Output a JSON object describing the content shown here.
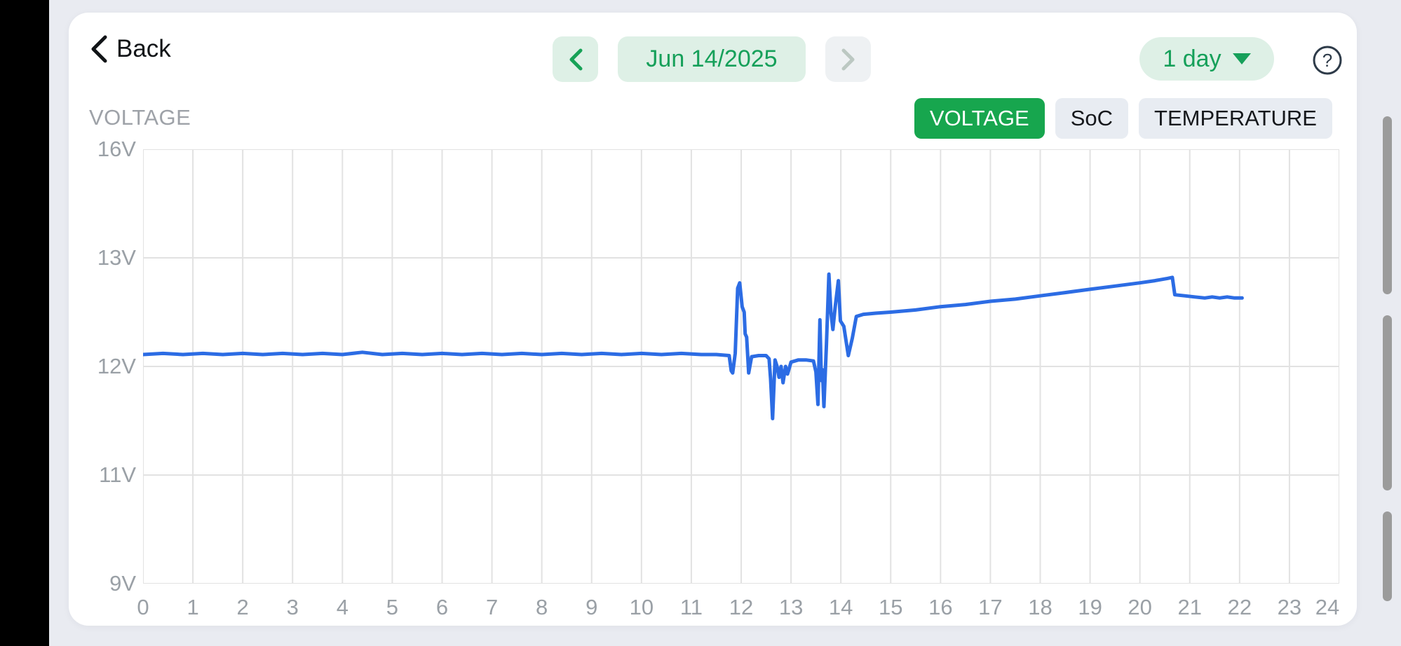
{
  "header": {
    "back_label": "Back",
    "date": "Jun 14/2025",
    "range_label": "1 day",
    "help_glyph": "?"
  },
  "tabs": [
    {
      "label": "VOLTAGE",
      "active": true
    },
    {
      "label": "SoC",
      "active": false
    },
    {
      "label": "TEMPERATURE",
      "active": false
    }
  ],
  "colors": {
    "accent_green": "#16a05a",
    "accent_green_bg": "#def0e6",
    "active_tab_green": "#17a64e",
    "inactive_tab_bg": "#e8ecf2",
    "line_blue": "#2c6ce4",
    "gridline": "#e2e2e2",
    "axis_text": "#9aa0a6",
    "background": "#e9ebf1",
    "card": "#ffffff",
    "disabled_chevron": "#bcc8c2"
  },
  "chart_data": {
    "type": "line",
    "title": "VOLTAGE",
    "x_ticks": [
      0,
      1,
      2,
      3,
      4,
      5,
      6,
      7,
      8,
      9,
      10,
      11,
      12,
      13,
      14,
      15,
      16,
      17,
      18,
      19,
      20,
      21,
      22,
      23,
      24
    ],
    "x_range": [
      0,
      24
    ],
    "y_ticks": [
      {
        "label": "16V",
        "value": 16
      },
      {
        "label": "13V",
        "value": 13
      },
      {
        "label": "12V",
        "value": 12
      },
      {
        "label": "11V",
        "value": 11
      },
      {
        "label": "9V",
        "value": 9
      }
    ],
    "y_axis_note": "nonlinear axis: gridlines evenly spaced at values 16,13,12,11,9",
    "grid": true,
    "series": [
      {
        "name": "voltage",
        "color": "#2c6ce4",
        "points": [
          [
            0,
            12.11
          ],
          [
            0.4,
            12.12
          ],
          [
            0.8,
            12.11
          ],
          [
            1.2,
            12.12
          ],
          [
            1.6,
            12.11
          ],
          [
            2,
            12.12
          ],
          [
            2.4,
            12.11
          ],
          [
            2.8,
            12.12
          ],
          [
            3.2,
            12.11
          ],
          [
            3.6,
            12.12
          ],
          [
            4,
            12.11
          ],
          [
            4.4,
            12.13
          ],
          [
            4.8,
            12.11
          ],
          [
            5.2,
            12.12
          ],
          [
            5.6,
            12.11
          ],
          [
            6,
            12.12
          ],
          [
            6.4,
            12.11
          ],
          [
            6.8,
            12.12
          ],
          [
            7.2,
            12.11
          ],
          [
            7.6,
            12.12
          ],
          [
            8,
            12.11
          ],
          [
            8.4,
            12.12
          ],
          [
            8.8,
            12.11
          ],
          [
            9.2,
            12.12
          ],
          [
            9.6,
            12.11
          ],
          [
            10,
            12.12
          ],
          [
            10.4,
            12.11
          ],
          [
            10.8,
            12.12
          ],
          [
            11.2,
            12.11
          ],
          [
            11.5,
            12.11
          ],
          [
            11.76,
            12.1
          ],
          [
            11.8,
            11.96
          ],
          [
            11.83,
            11.94
          ],
          [
            11.88,
            12.12
          ],
          [
            11.93,
            12.72
          ],
          [
            11.97,
            12.77
          ],
          [
            12.02,
            12.55
          ],
          [
            12.06,
            12.5
          ],
          [
            12.08,
            12.3
          ],
          [
            12.11,
            12.27
          ],
          [
            12.15,
            11.94
          ],
          [
            12.21,
            12.09
          ],
          [
            12.35,
            12.1
          ],
          [
            12.5,
            12.1
          ],
          [
            12.56,
            12.07
          ],
          [
            12.59,
            11.89
          ],
          [
            12.63,
            11.52
          ],
          [
            12.68,
            12.06
          ],
          [
            12.72,
            12.0
          ],
          [
            12.76,
            11.9
          ],
          [
            12.8,
            12.0
          ],
          [
            12.84,
            11.85
          ],
          [
            12.89,
            12.0
          ],
          [
            12.93,
            11.93
          ],
          [
            13.0,
            12.04
          ],
          [
            13.15,
            12.06
          ],
          [
            13.3,
            12.06
          ],
          [
            13.45,
            12.05
          ],
          [
            13.5,
            11.95
          ],
          [
            13.54,
            11.65
          ],
          [
            13.58,
            12.43
          ],
          [
            13.61,
            11.87
          ],
          [
            13.63,
            11.97
          ],
          [
            13.66,
            11.63
          ],
          [
            13.71,
            12.2
          ],
          [
            13.76,
            12.85
          ],
          [
            13.8,
            12.5
          ],
          [
            13.84,
            12.34
          ],
          [
            13.89,
            12.56
          ],
          [
            13.95,
            12.79
          ],
          [
            13.99,
            12.42
          ],
          [
            14.06,
            12.37
          ],
          [
            14.15,
            12.1
          ],
          [
            14.23,
            12.26
          ],
          [
            14.31,
            12.46
          ],
          [
            14.45,
            12.48
          ],
          [
            14.7,
            12.49
          ],
          [
            15,
            12.5
          ],
          [
            15.5,
            12.52
          ],
          [
            16,
            12.55
          ],
          [
            16.5,
            12.57
          ],
          [
            17,
            12.6
          ],
          [
            17.5,
            12.62
          ],
          [
            18,
            12.65
          ],
          [
            18.5,
            12.68
          ],
          [
            19,
            12.71
          ],
          [
            19.5,
            12.74
          ],
          [
            20,
            12.77
          ],
          [
            20.3,
            12.79
          ],
          [
            20.55,
            12.81
          ],
          [
            20.65,
            12.82
          ],
          [
            20.7,
            12.66
          ],
          [
            20.9,
            12.65
          ],
          [
            21.1,
            12.64
          ],
          [
            21.3,
            12.63
          ],
          [
            21.45,
            12.64
          ],
          [
            21.6,
            12.63
          ],
          [
            21.75,
            12.64
          ],
          [
            21.9,
            12.63
          ],
          [
            22.05,
            12.63
          ]
        ]
      }
    ]
  }
}
